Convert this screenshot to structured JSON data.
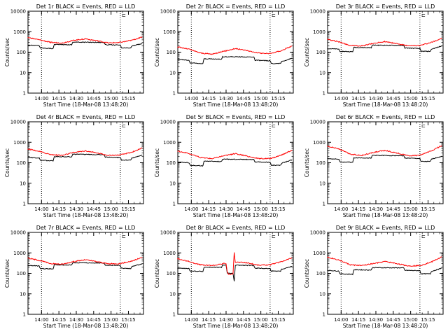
{
  "page": {
    "background": "#ffffff"
  },
  "shared_axes": {
    "xlabel": "Start Time (18-Mar-08 13:48:20)",
    "ylabel": "Counts/sec",
    "x_tick_labels": [
      "14:00",
      "14:15",
      "14:30",
      "14:45",
      "15:00",
      "15:15"
    ],
    "y_tick_labels": [
      "1",
      "10",
      "100",
      "1000",
      "10000"
    ],
    "marker_glyph": "⊏"
  },
  "colors": {
    "events": "#000000",
    "lld": "#ff0000"
  },
  "chart_data": [
    {
      "type": "line",
      "title": "Det 1r BLACK = Events, RED = LLD",
      "xlabel": "Start Time (18-Mar-08 13:48:20)",
      "ylabel": "Counts/sec",
      "y_scale": "log",
      "ylim": [
        1,
        10000
      ],
      "xlim": [
        "13:48:20",
        "15:28:00"
      ],
      "vertical_dotted_lines": [
        "14:00",
        "15:08"
      ],
      "series": [
        {
          "key": "events",
          "color": "#000000",
          "x": [
            "13:48",
            "13:58",
            "13:59",
            "14:10",
            "14:11",
            "14:26",
            "14:27",
            "14:54",
            "14:55",
            "15:08",
            "15:09",
            "15:17",
            "15:18",
            "15:27"
          ],
          "y": [
            220,
            210,
            160,
            150,
            240,
            230,
            310,
            300,
            230,
            220,
            160,
            160,
            200,
            260
          ]
        },
        {
          "key": "lld",
          "color": "#ff0000",
          "x": [
            "13:48",
            "13:58",
            "14:08",
            "14:18",
            "14:28",
            "14:38",
            "14:48",
            "14:58",
            "15:08",
            "15:18",
            "15:27"
          ],
          "y": [
            520,
            400,
            300,
            280,
            380,
            450,
            360,
            280,
            300,
            380,
            560
          ]
        }
      ]
    },
    {
      "type": "line",
      "title": "Det 2r BLACK = Events, RED = LLD",
      "xlabel": "Start Time (18-Mar-08 13:48:20)",
      "ylabel": "Counts/sec",
      "y_scale": "log",
      "ylim": [
        1,
        10000
      ],
      "xlim": [
        "13:48:20",
        "15:28:00"
      ],
      "vertical_dotted_lines": [
        "14:00",
        "15:08"
      ],
      "series": [
        {
          "key": "events",
          "color": "#000000",
          "x": [
            "13:48",
            "13:58",
            "13:59",
            "14:10",
            "14:11",
            "14:26",
            "14:27",
            "14:54",
            "14:55",
            "15:08",
            "15:09",
            "15:17",
            "15:18",
            "15:27"
          ],
          "y": [
            45,
            40,
            30,
            28,
            48,
            45,
            60,
            58,
            40,
            38,
            28,
            28,
            35,
            50
          ]
        },
        {
          "key": "lld",
          "color": "#ff0000",
          "x": [
            "13:48",
            "13:58",
            "14:08",
            "14:18",
            "14:28",
            "14:38",
            "14:48",
            "14:58",
            "15:08",
            "15:18",
            "15:27"
          ],
          "y": [
            180,
            140,
            90,
            80,
            110,
            150,
            120,
            90,
            85,
            120,
            200
          ]
        }
      ]
    },
    {
      "type": "line",
      "title": "Det 3r BLACK = Events, RED = LLD",
      "xlabel": "Start Time (18-Mar-08 13:48:20)",
      "ylabel": "Counts/sec",
      "y_scale": "log",
      "ylim": [
        1,
        10000
      ],
      "xlim": [
        "13:48:20",
        "15:28:00"
      ],
      "vertical_dotted_lines": [
        "14:00",
        "15:08"
      ],
      "series": [
        {
          "key": "events",
          "color": "#000000",
          "x": [
            "13:48",
            "13:58",
            "13:59",
            "14:10",
            "14:11",
            "14:26",
            "14:27",
            "14:54",
            "14:55",
            "15:08",
            "15:09",
            "15:17",
            "15:18",
            "15:27"
          ],
          "y": [
            150,
            140,
            110,
            105,
            170,
            165,
            220,
            210,
            160,
            150,
            110,
            110,
            140,
            200
          ]
        },
        {
          "key": "lld",
          "color": "#ff0000",
          "x": [
            "13:48",
            "13:58",
            "14:08",
            "14:18",
            "14:28",
            "14:38",
            "14:48",
            "14:58",
            "15:08",
            "15:18",
            "15:27"
          ],
          "y": [
            420,
            320,
            210,
            200,
            270,
            330,
            260,
            200,
            210,
            300,
            480
          ]
        }
      ]
    },
    {
      "type": "line",
      "title": "Det 4r BLACK = Events, RED = LLD",
      "xlabel": "Start Time (18-Mar-08 13:48:20)",
      "ylabel": "Counts/sec",
      "y_scale": "log",
      "ylim": [
        1,
        10000
      ],
      "xlim": [
        "13:48:20",
        "15:28:00"
      ],
      "vertical_dotted_lines": [
        "14:00",
        "15:08"
      ],
      "series": [
        {
          "key": "events",
          "color": "#000000",
          "x": [
            "13:48",
            "13:58",
            "13:59",
            "14:10",
            "14:11",
            "14:26",
            "14:27",
            "14:54",
            "14:55",
            "15:08",
            "15:09",
            "15:17",
            "15:18",
            "15:27"
          ],
          "y": [
            180,
            170,
            130,
            125,
            200,
            195,
            260,
            250,
            190,
            180,
            135,
            135,
            170,
            230
          ]
        },
        {
          "key": "lld",
          "color": "#ff0000",
          "x": [
            "13:48",
            "13:58",
            "14:08",
            "14:18",
            "14:28",
            "14:38",
            "14:48",
            "14:58",
            "15:08",
            "15:18",
            "15:27"
          ],
          "y": [
            480,
            360,
            250,
            230,
            320,
            380,
            300,
            230,
            240,
            330,
            520
          ]
        }
      ]
    },
    {
      "type": "line",
      "title": "Det 5r BLACK = Events, RED = LLD",
      "xlabel": "Start Time (18-Mar-08 13:48:20)",
      "ylabel": "Counts/sec",
      "y_scale": "log",
      "ylim": [
        1,
        10000
      ],
      "xlim": [
        "13:48:20",
        "15:28:00"
      ],
      "vertical_dotted_lines": [
        "14:00",
        "15:08"
      ],
      "series": [
        {
          "key": "events",
          "color": "#000000",
          "x": [
            "13:48",
            "13:58",
            "13:59",
            "14:10",
            "14:11",
            "14:26",
            "14:27",
            "14:54",
            "14:55",
            "15:08",
            "15:09",
            "15:17",
            "15:18",
            "15:27"
          ],
          "y": [
            110,
            100,
            75,
            70,
            120,
            115,
            150,
            145,
            110,
            105,
            75,
            75,
            95,
            140
          ]
        },
        {
          "key": "lld",
          "color": "#ff0000",
          "x": [
            "13:48",
            "13:58",
            "14:08",
            "14:18",
            "14:28",
            "14:38",
            "14:48",
            "14:58",
            "15:08",
            "15:18",
            "15:27"
          ],
          "y": [
            380,
            280,
            180,
            160,
            220,
            280,
            210,
            160,
            160,
            240,
            420
          ]
        }
      ]
    },
    {
      "type": "line",
      "title": "Det 6r BLACK = Events, RED = LLD",
      "xlabel": "Start Time (18-Mar-08 13:48:20)",
      "ylabel": "Counts/sec",
      "y_scale": "log",
      "ylim": [
        1,
        10000
      ],
      "xlim": [
        "13:48:20",
        "15:28:00"
      ],
      "vertical_dotted_lines": [
        "14:00",
        "15:08"
      ],
      "series": [
        {
          "key": "events",
          "color": "#000000",
          "x": [
            "13:48",
            "13:58",
            "13:59",
            "14:10",
            "14:11",
            "14:26",
            "14:27",
            "14:54",
            "14:55",
            "15:08",
            "15:09",
            "15:17",
            "15:18",
            "15:27"
          ],
          "y": [
            160,
            150,
            110,
            105,
            175,
            170,
            230,
            220,
            170,
            160,
            115,
            115,
            150,
            210
          ]
        },
        {
          "key": "lld",
          "color": "#ff0000",
          "x": [
            "13:48",
            "13:58",
            "14:08",
            "14:18",
            "14:28",
            "14:38",
            "14:48",
            "14:58",
            "15:08",
            "15:18",
            "15:27"
          ],
          "y": [
            650,
            480,
            260,
            230,
            320,
            400,
            300,
            220,
            230,
            380,
            700
          ]
        }
      ]
    },
    {
      "type": "line",
      "title": "Det 7r BLACK = Events, RED = LLD",
      "xlabel": "Start Time (18-Mar-08 13:48:20)",
      "ylabel": "Counts/sec",
      "y_scale": "log",
      "ylim": [
        1,
        10000
      ],
      "xlim": [
        "13:48:20",
        "15:28:00"
      ],
      "vertical_dotted_lines": [
        "14:00",
        "15:08"
      ],
      "series": [
        {
          "key": "events",
          "color": "#000000",
          "x": [
            "13:48",
            "13:58",
            "13:59",
            "14:10",
            "14:11",
            "14:26",
            "14:27",
            "14:54",
            "14:55",
            "15:08",
            "15:09",
            "15:17",
            "15:18",
            "15:27"
          ],
          "y": [
            240,
            230,
            170,
            165,
            260,
            255,
            330,
            320,
            250,
            240,
            175,
            175,
            220,
            290
          ]
        },
        {
          "key": "lld",
          "color": "#ff0000",
          "x": [
            "13:48",
            "13:58",
            "14:08",
            "14:18",
            "14:28",
            "14:38",
            "14:48",
            "14:58",
            "15:08",
            "15:18",
            "15:27"
          ],
          "y": [
            560,
            430,
            300,
            280,
            380,
            460,
            370,
            290,
            300,
            400,
            600
          ]
        }
      ]
    },
    {
      "type": "line",
      "title": "Det 8r BLACK = Events, RED = LLD",
      "xlabel": "Start Time (18-Mar-08 13:48:20)",
      "ylabel": "Counts/sec",
      "y_scale": "log",
      "ylim": [
        1,
        10000
      ],
      "xlim": [
        "13:48:20",
        "15:28:00"
      ],
      "vertical_dotted_lines": [
        "14:00",
        "15:08"
      ],
      "series": [
        {
          "key": "events",
          "color": "#000000",
          "x": [
            "13:48",
            "13:58",
            "13:59",
            "14:10",
            "14:11",
            "14:26",
            "14:27",
            "14:30",
            "14:31",
            "14:32",
            "14:36",
            "14:37",
            "14:38",
            "14:54",
            "14:55",
            "15:08",
            "15:09",
            "15:17",
            "15:18",
            "15:27"
          ],
          "y": [
            180,
            170,
            130,
            125,
            200,
            195,
            260,
            250,
            100,
            100,
            100,
            40,
            250,
            240,
            180,
            170,
            130,
            130,
            160,
            220
          ]
        },
        {
          "key": "lld",
          "color": "#ff0000",
          "x": [
            "13:48",
            "13:58",
            "14:08",
            "14:18",
            "14:28",
            "14:30",
            "14:31",
            "14:32",
            "14:36",
            "14:37",
            "14:38",
            "14:48",
            "14:58",
            "15:08",
            "15:18",
            "15:27"
          ],
          "y": [
            520,
            380,
            260,
            240,
            300,
            300,
            120,
            90,
            90,
            1000,
            360,
            330,
            250,
            260,
            380,
            580
          ]
        }
      ]
    },
    {
      "type": "line",
      "title": "Det 9r BLACK = Events, RED = LLD",
      "xlabel": "Start Time (18-Mar-08 13:48:20)",
      "ylabel": "Counts/sec",
      "y_scale": "log",
      "ylim": [
        1,
        10000
      ],
      "xlim": [
        "13:48:20",
        "15:28:00"
      ],
      "vertical_dotted_lines": [
        "14:00",
        "15:08"
      ],
      "series": [
        {
          "key": "events",
          "color": "#000000",
          "x": [
            "13:48",
            "13:58",
            "13:59",
            "14:10",
            "14:11",
            "14:26",
            "14:27",
            "14:54",
            "14:55",
            "15:08",
            "15:09",
            "15:17",
            "15:18",
            "15:27"
          ],
          "y": [
            140,
            130,
            95,
            90,
            150,
            145,
            190,
            185,
            140,
            135,
            95,
            95,
            125,
            180
          ]
        },
        {
          "key": "lld",
          "color": "#ff0000",
          "x": [
            "13:48",
            "13:58",
            "14:08",
            "14:18",
            "14:28",
            "14:38",
            "14:48",
            "14:58",
            "15:08",
            "15:18",
            "15:27"
          ],
          "y": [
            620,
            450,
            260,
            240,
            300,
            380,
            300,
            230,
            240,
            360,
            640
          ]
        }
      ]
    }
  ]
}
